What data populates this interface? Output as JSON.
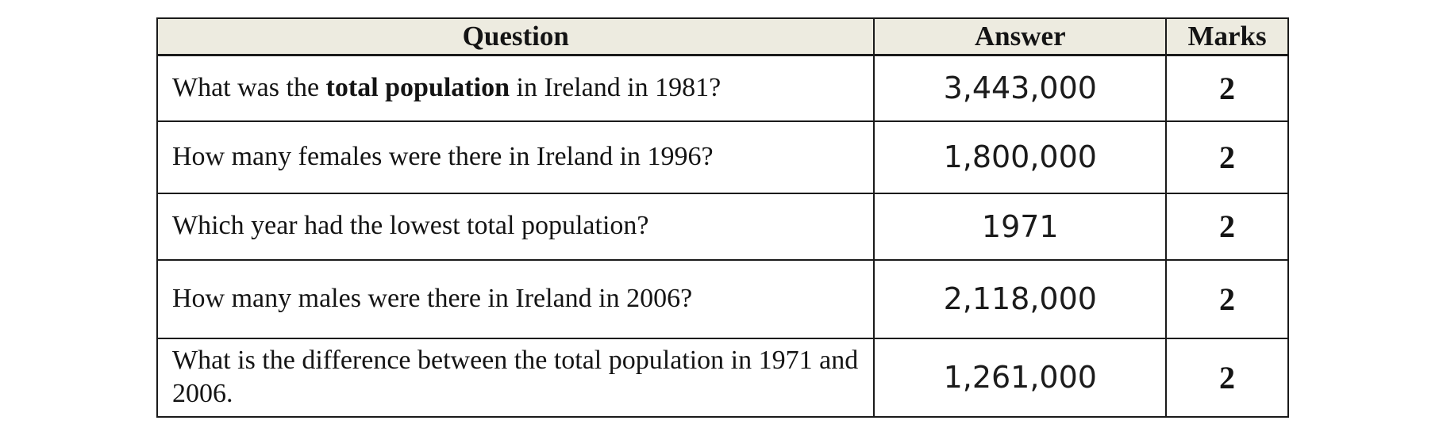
{
  "table": {
    "columns": [
      "Question",
      "Answer",
      "Marks"
    ],
    "rows": [
      {
        "question_prefix": "What was the ",
        "question_bold": "total population",
        "question_suffix": " in Ireland in 1981?",
        "answer": "3,443,000",
        "marks": "2"
      },
      {
        "question_prefix": "How many females were there in Ireland in 1996?",
        "question_bold": "",
        "question_suffix": "",
        "answer": "1,800,000",
        "marks": "2"
      },
      {
        "question_prefix": "Which year had the lowest total population?",
        "question_bold": "",
        "question_suffix": "",
        "answer": "1971",
        "marks": "2"
      },
      {
        "question_prefix": "How many males were there in Ireland in 2006?",
        "question_bold": "",
        "question_suffix": "",
        "answer": "2,118,000",
        "marks": "2"
      },
      {
        "question_prefix": "What is the difference between the total population in 1971 and 2006.",
        "question_bold": "",
        "question_suffix": "",
        "answer": "1,261,000",
        "marks": "2"
      }
    ]
  },
  "colors": {
    "header_background": "#edebe0",
    "border": "#1a1a1a",
    "page_background": "#ffffff"
  }
}
